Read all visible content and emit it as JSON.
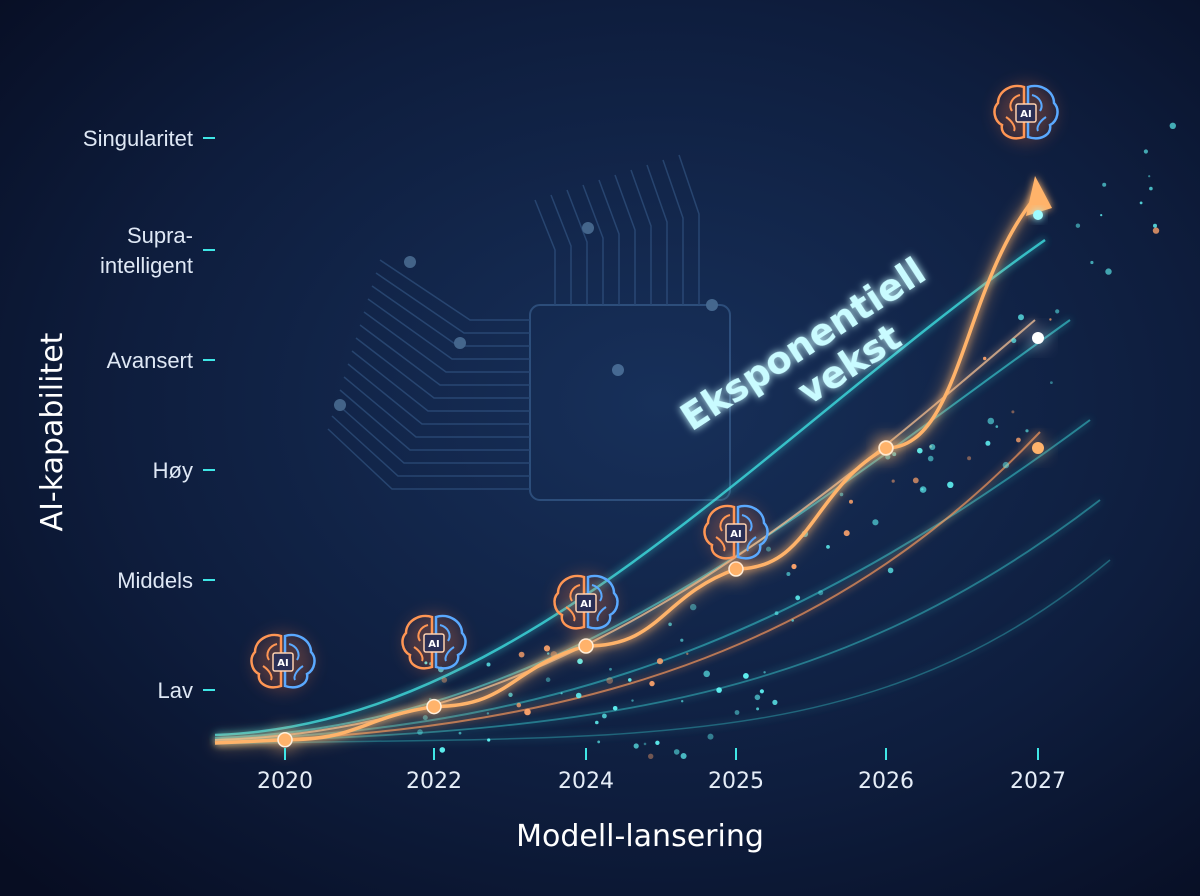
{
  "chart_data": {
    "type": "line",
    "title": "",
    "xlabel": "Modell-lansering",
    "ylabel": "AI-kapabilitet",
    "categories": [
      "2020",
      "2022",
      "2024",
      "2025",
      "2026",
      "2027"
    ],
    "y_levels": [
      "Lav",
      "Middels",
      "Høy",
      "Avansert",
      "Supra-\nintelligent",
      "Singularitet"
    ],
    "series": [
      {
        "values": [
          0.7,
          0.9,
          1.4,
          2.1,
          3.2,
          5.5
        ],
        "color": "#ffb36b"
      }
    ],
    "secondary_points": [
      {
        "x": "2026",
        "y": 3.2
      },
      {
        "x": "2027",
        "y": 4.2
      },
      {
        "x": "2027",
        "y": 3.2
      }
    ],
    "ylim": [
      0.65,
      6.2
    ],
    "annotation": "Eksponentiell\nvekst",
    "icons": [
      "brain-chip-icon"
    ],
    "icon_label": "AI",
    "colors": {
      "axis": "#3fe6e6",
      "curve": "#ffb36b",
      "glow": "#3fe6e6"
    }
  }
}
